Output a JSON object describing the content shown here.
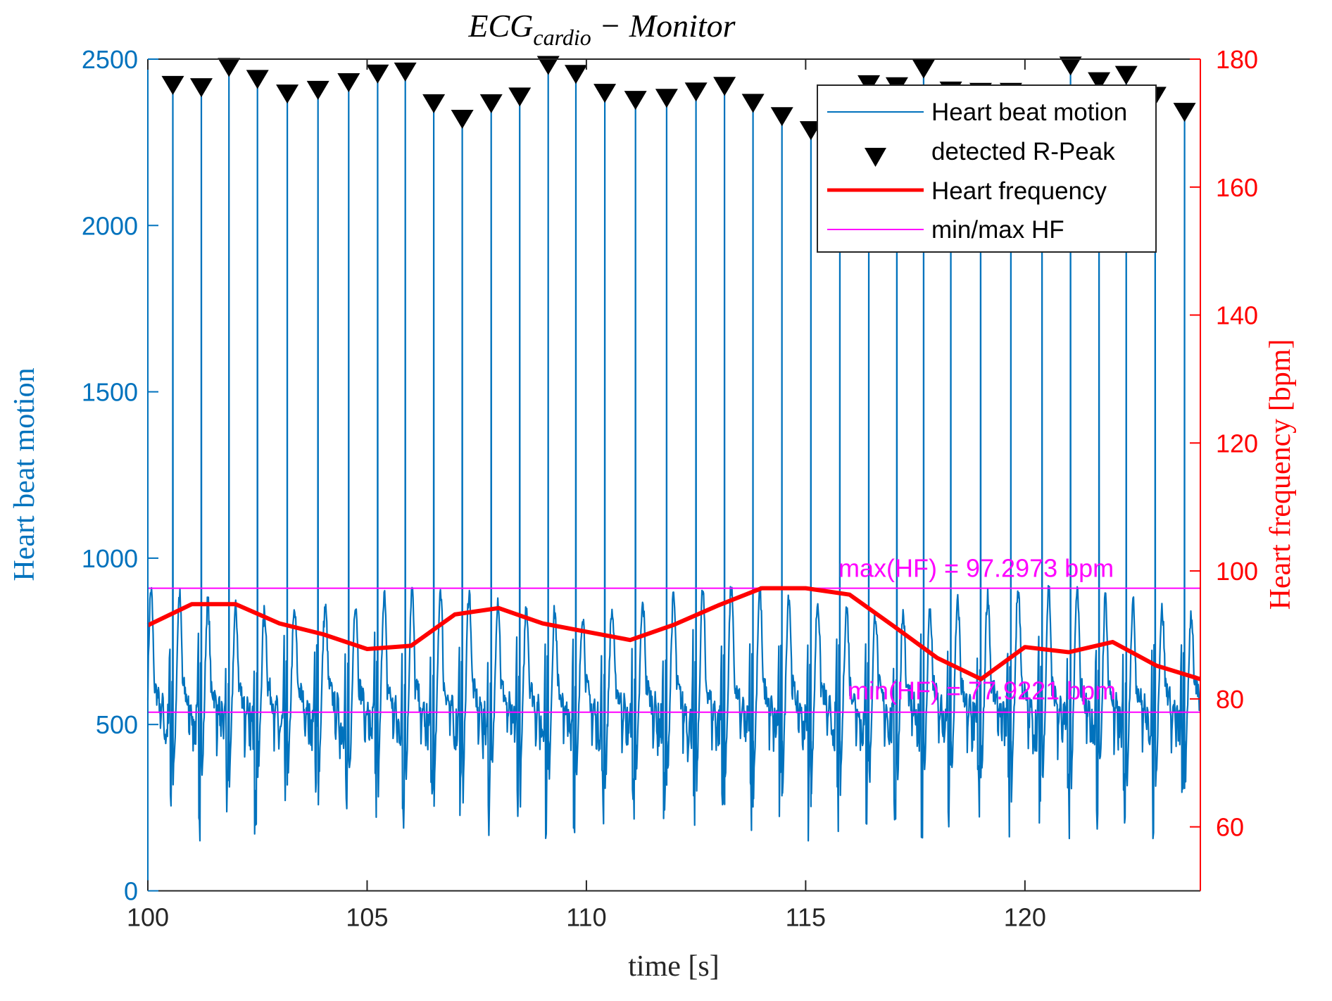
{
  "chart_data": {
    "type": "line",
    "title": {
      "main": "ECG",
      "subscript": "cardio",
      "rest": " − Monitor"
    },
    "xlabel": "time [s]",
    "ylabel_left": "Heart beat motion",
    "ylabel_right": "Heart frequency [bpm]",
    "xlim": [
      100,
      124
    ],
    "ylim_left": [
      0,
      2500
    ],
    "ylim_right": [
      50,
      180
    ],
    "x_ticks": [
      "100",
      "105",
      "110",
      "115",
      "120"
    ],
    "x_tick_values": [
      100,
      105,
      110,
      115,
      120
    ],
    "y_left_ticks": [
      "0",
      "500",
      "1000",
      "1500",
      "2000",
      "2500"
    ],
    "y_left_tick_values": [
      0,
      500,
      1000,
      1500,
      2000,
      2500
    ],
    "y_right_ticks": [
      "60",
      "80",
      "100",
      "120",
      "140",
      "160",
      "180"
    ],
    "y_right_tick_values": [
      60,
      80,
      100,
      120,
      140,
      160,
      180
    ],
    "grid": false,
    "legend": {
      "placement": "top-right",
      "entries": [
        {
          "label": "Heart beat motion",
          "style": "thin-line",
          "color": "#0072bd"
        },
        {
          "label": "detected R-Peak",
          "style": "down-triangle-marker",
          "color": "#000000"
        },
        {
          "label": "Heart frequency",
          "style": "thick-line",
          "color": "#ff0000"
        },
        {
          "label": "min/max HF",
          "style": "thin-line",
          "color": "#ff00ff"
        }
      ]
    },
    "colors": {
      "ecg": "#0072bd",
      "rpeak": "#000000",
      "heart_frequency": "#ff0000",
      "minmax": "#ff00ff",
      "left_axis": "#0072bd",
      "right_axis": "#ff0000",
      "axis": "#262626"
    },
    "series": [
      {
        "name": "detected R-Peak",
        "axis": "left",
        "t": [
          100.57,
          101.22,
          101.85,
          102.5,
          103.18,
          103.88,
          104.58,
          105.24,
          105.87,
          106.52,
          107.17,
          107.83,
          108.48,
          109.13,
          109.76,
          110.42,
          111.12,
          111.83,
          112.5,
          113.15,
          113.8,
          114.46,
          115.12,
          115.78,
          116.44,
          117.08,
          117.69,
          118.31,
          118.99,
          119.68,
          120.39,
          121.04,
          121.69,
          122.31,
          122.97,
          123.64
        ],
        "values": [
          2421,
          2414,
          2475,
          2439,
          2395,
          2406,
          2429,
          2455,
          2461,
          2366,
          2319,
          2366,
          2386,
          2481,
          2454,
          2397,
          2376,
          2382,
          2401,
          2418,
          2367,
          2327,
          2285,
          2300,
          2423,
          2417,
          2470,
          2404,
          2400,
          2400,
          2386,
          2479,
          2432,
          2451,
          2388,
          2340
        ]
      },
      {
        "name": "Heart frequency",
        "axis": "right",
        "t": [
          100,
          101,
          102,
          103,
          104,
          105,
          106,
          107,
          108,
          109,
          110,
          111,
          112,
          113,
          114,
          115,
          116,
          117,
          118,
          119,
          120,
          121,
          122,
          123,
          124
        ],
        "values": [
          91.5,
          94.8,
          94.8,
          91.8,
          90.1,
          87.8,
          88.3,
          93.2,
          94.2,
          91.8,
          90.5,
          89.2,
          91.6,
          94.6,
          97.3,
          97.3,
          96.3,
          91.4,
          86.4,
          83.1,
          88.1,
          87.3,
          88.9,
          85.2,
          83.1
        ]
      },
      {
        "name": "Heart beat motion",
        "axis": "left",
        "description": "ECG trace with an R-spike at each detected R-Peak; between spikes the signal oscillates roughly between 100 and 950",
        "baseline_range": [
          100,
          950
        ]
      }
    ],
    "reference_lines": [
      {
        "name": "max(HF)",
        "value": 97.2973,
        "axis": "right",
        "label": "max(HF) = 97.2973 bpm"
      },
      {
        "name": "min(HF)",
        "value": 77.9221,
        "axis": "right",
        "label": "min(HF) = 77.9221 bpm"
      }
    ]
  }
}
